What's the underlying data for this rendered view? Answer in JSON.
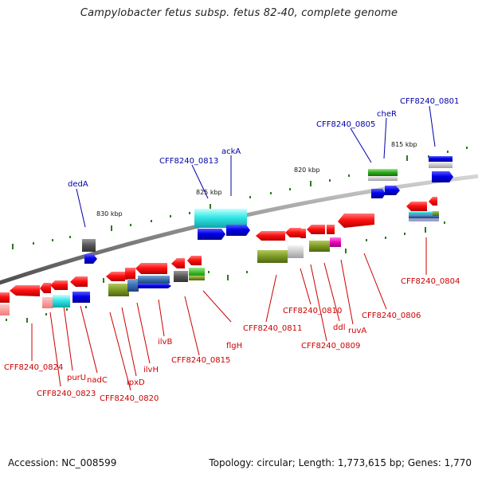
{
  "title": "Campylobacter fetus subsp. fetus 82-40, complete genome",
  "footer": {
    "accession": "Accession: NC_008599",
    "topology": "Topology: circular; Length: 1,773,615 bp; Genes: 1,770"
  },
  "colors": {
    "backbone": "#8a8a8a",
    "tick": "#2b7a1f",
    "label_red": "#cc0000",
    "label_blue": "#0000aa",
    "kbp_text": "#111111"
  },
  "ruler": {
    "kbp_labels": [
      "830 kbp",
      "825 kbp",
      "820 kbp",
      "815 kbp"
    ]
  },
  "labels_top": [
    "dedA",
    "CFF8240_0813",
    "ackA",
    "CFF8240_0805",
    "cheR",
    "CFF8240_0801"
  ],
  "labels_bottom": [
    "CFF8240_0824",
    "CFF8240_0823",
    "purU",
    "nadC",
    "CFF8240_0820",
    "lpxD",
    "ilvH",
    "ilvB",
    "CFF8240_0815",
    "flgH",
    "CFF8240_0811",
    "CFF8240_0810",
    "ddl",
    "CFF8240_0809",
    "ruvA",
    "CFF8240_0806",
    "CFF8240_0804"
  ]
}
